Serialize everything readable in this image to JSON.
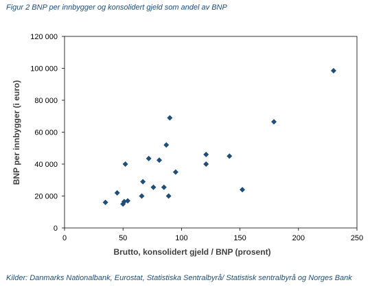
{
  "caption": "Figur 2 BNP per innbygger og konsolidert gjeld som andel av BNP",
  "source": "Kilder: Danmarks Nationalbank, Eurostat, Statistiska Sentralbyrå/ Statistisk sentralbyrå og Norges Bank",
  "chart_data": {
    "type": "scatter",
    "xlabel": "Brutto, konsolidert gjeld / BNP (prosent)",
    "ylabel": "BNP per innbygger (i euro)",
    "xlim": [
      0,
      250
    ],
    "ylim": [
      0,
      120000
    ],
    "x_ticks": [
      "0",
      "50",
      "100",
      "150",
      "200",
      "250"
    ],
    "y_ticks": [
      "0",
      "20 000",
      "40 000",
      "60 000",
      "80 000",
      "100 000",
      "120 000"
    ],
    "grid": false,
    "marker_color": "#1f4e79",
    "points": [
      {
        "x": 35,
        "y": 16000
      },
      {
        "x": 45,
        "y": 22000
      },
      {
        "x": 50,
        "y": 15000
      },
      {
        "x": 51,
        "y": 16500
      },
      {
        "x": 52,
        "y": 40000
      },
      {
        "x": 54,
        "y": 17000
      },
      {
        "x": 66,
        "y": 20000
      },
      {
        "x": 67,
        "y": 29000
      },
      {
        "x": 72,
        "y": 43500
      },
      {
        "x": 76,
        "y": 25500
      },
      {
        "x": 81,
        "y": 42500
      },
      {
        "x": 85,
        "y": 25500
      },
      {
        "x": 87,
        "y": 52000
      },
      {
        "x": 89,
        "y": 20000
      },
      {
        "x": 90,
        "y": 69000
      },
      {
        "x": 95,
        "y": 35000
      },
      {
        "x": 121,
        "y": 46000
      },
      {
        "x": 121,
        "y": 40000
      },
      {
        "x": 141,
        "y": 45000
      },
      {
        "x": 152,
        "y": 24000
      },
      {
        "x": 179,
        "y": 66500
      },
      {
        "x": 230,
        "y": 98500
      }
    ]
  }
}
